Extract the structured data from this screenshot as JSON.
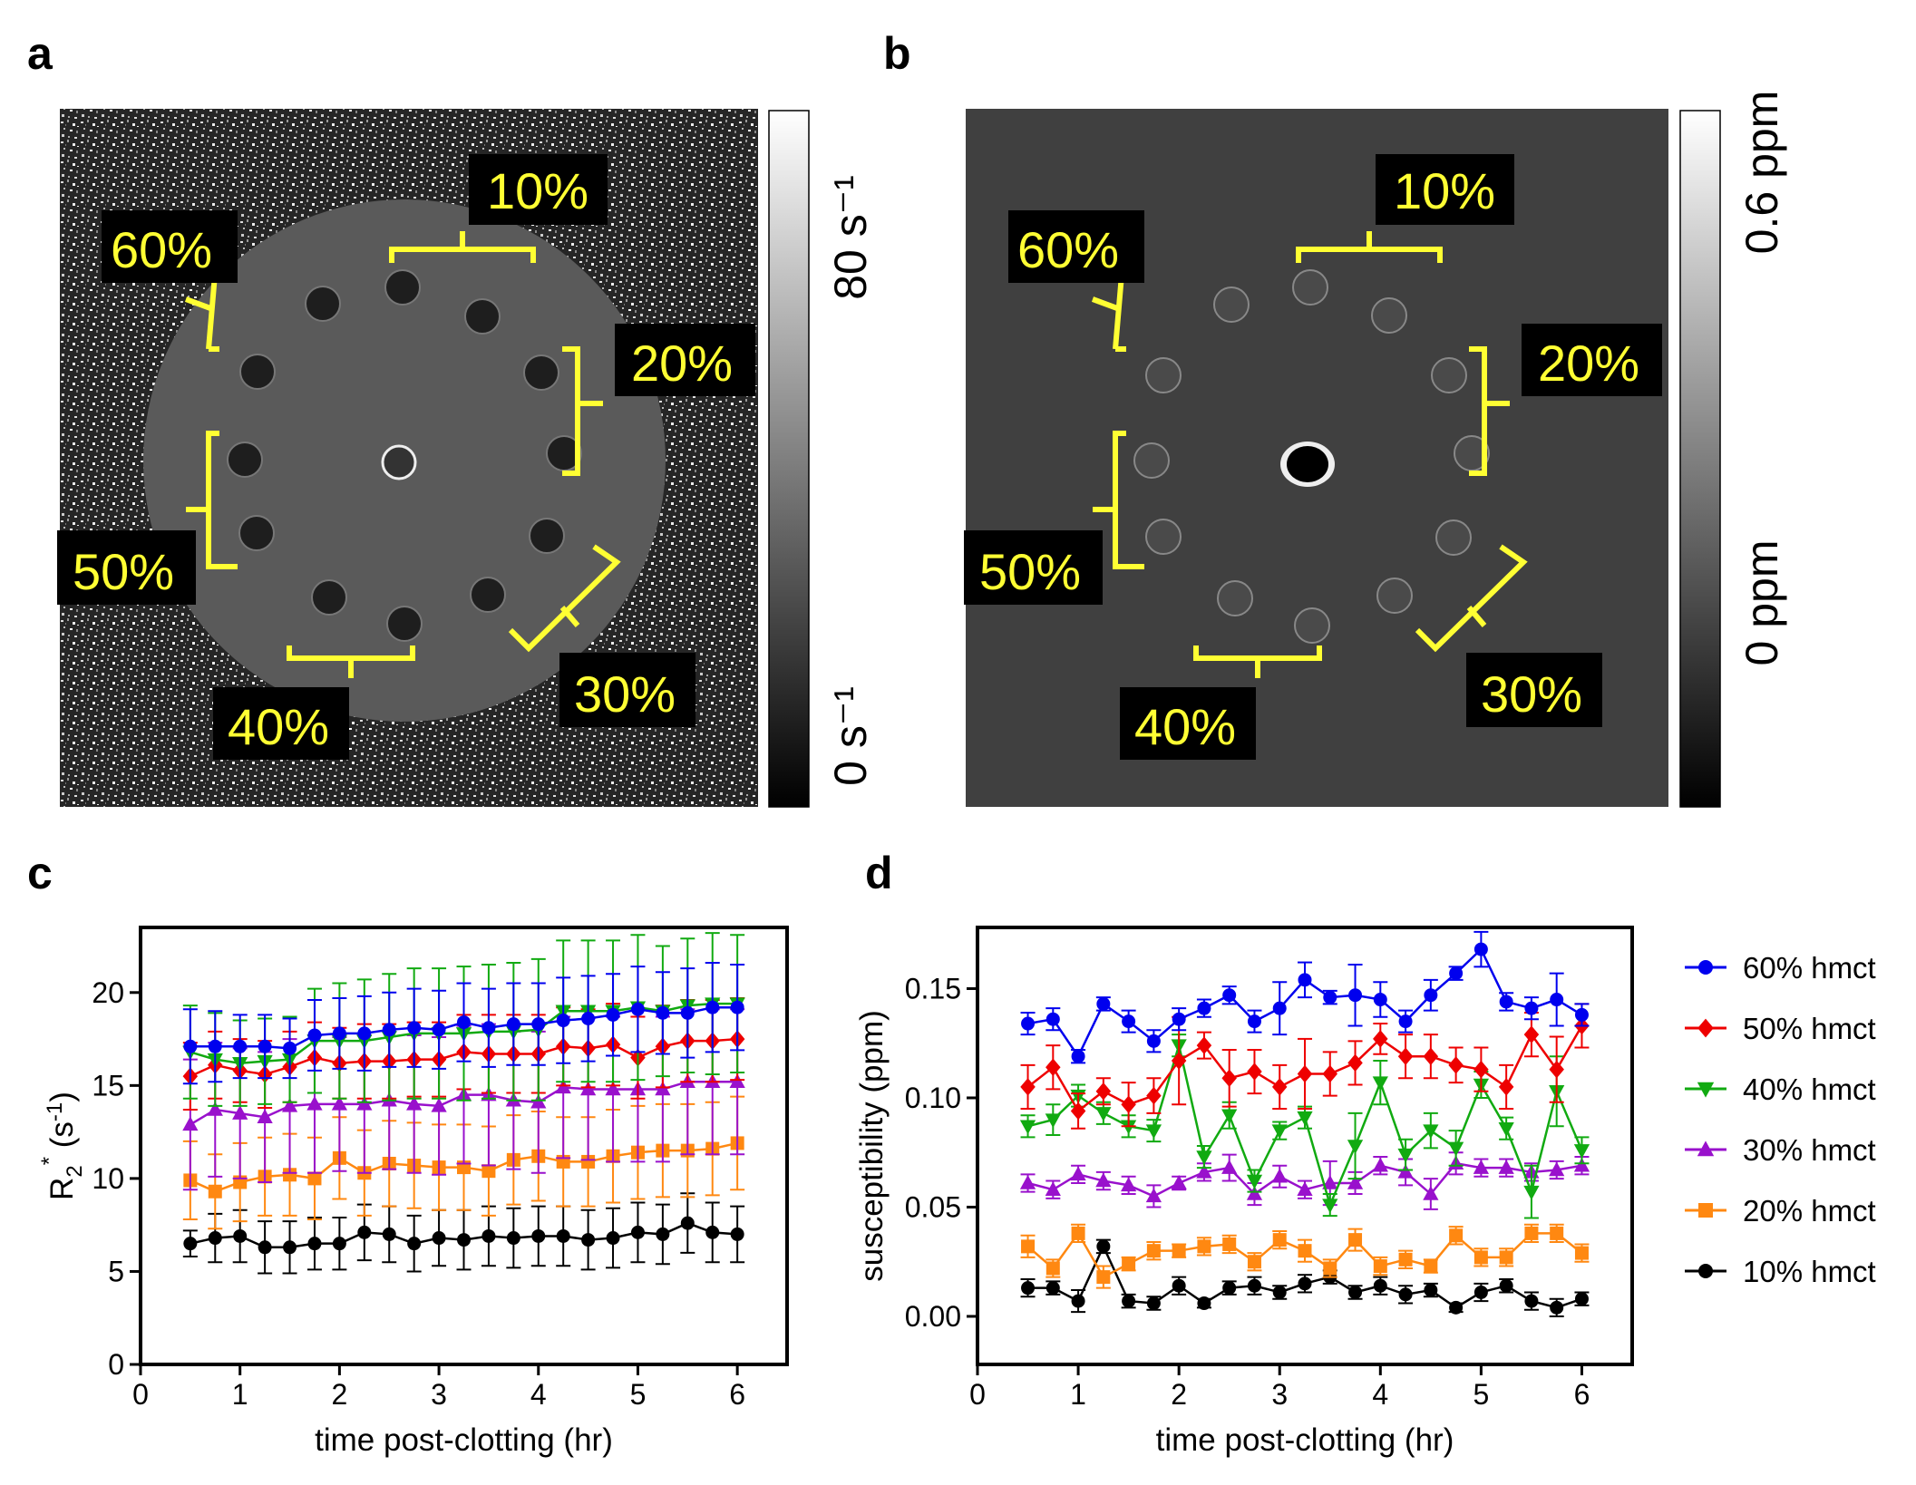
{
  "panels": {
    "a": {
      "label": "a",
      "colorbar": {
        "top_label": "80 s⁻¹",
        "bottom_label": "0 s⁻¹"
      },
      "hematocrit_labels": [
        "10%",
        "20%",
        "30%",
        "40%",
        "50%",
        "60%"
      ]
    },
    "b": {
      "label": "b",
      "colorbar": {
        "top_label": "0.6 ppm",
        "bottom_label": "0 ppm"
      },
      "hematocrit_labels": [
        "10%",
        "20%",
        "30%",
        "40%",
        "50%",
        "60%"
      ]
    },
    "c": {
      "label": "c"
    },
    "d": {
      "label": "d"
    }
  },
  "colors": {
    "60": "#0000ee",
    "50": "#ee0000",
    "40": "#11aa11",
    "30": "#9911cc",
    "20": "#ff8811",
    "10": "#000000",
    "label_yellow": "#ffff33"
  },
  "legend": [
    {
      "key": "60",
      "label": "60% hmct",
      "marker": "circle"
    },
    {
      "key": "50",
      "label": "50% hmct",
      "marker": "diamond"
    },
    {
      "key": "40",
      "label": "40% hmct",
      "marker": "triangle-down"
    },
    {
      "key": "30",
      "label": "30% hmct",
      "marker": "triangle-up"
    },
    {
      "key": "20",
      "label": "20% hmct",
      "marker": "square"
    },
    {
      "key": "10",
      "label": "10% hmct",
      "marker": "circle"
    }
  ],
  "chart_data": [
    {
      "panel": "c",
      "type": "line",
      "xlabel": "time post-clotting (hr)",
      "ylabel": "R2* (s-1)",
      "xlim": [
        0,
        6.5
      ],
      "ylim": [
        0,
        23.5
      ],
      "xticks": [
        0,
        1,
        2,
        3,
        4,
        5,
        6
      ],
      "yticks": [
        0,
        5,
        10,
        15,
        20
      ],
      "x": [
        0.5,
        0.75,
        1.0,
        1.25,
        1.5,
        1.75,
        2.0,
        2.25,
        2.5,
        2.75,
        3.0,
        3.25,
        3.5,
        3.75,
        4.0,
        4.25,
        4.5,
        4.75,
        5.0,
        5.25,
        5.5,
        5.75,
        6.0
      ],
      "series": [
        {
          "key": "60",
          "name": "60% hmct",
          "values": [
            17.1,
            17.1,
            17.1,
            17.1,
            17.0,
            17.7,
            17.8,
            17.8,
            18.0,
            18.1,
            18.0,
            18.4,
            18.1,
            18.3,
            18.3,
            18.5,
            18.6,
            18.8,
            19.1,
            18.9,
            18.9,
            19.2,
            19.2
          ],
          "err": [
            2.0,
            1.9,
            1.7,
            1.7,
            1.6,
            1.9,
            1.9,
            2.0,
            2.0,
            2.1,
            2.1,
            2.1,
            2.1,
            2.2,
            2.2,
            2.3,
            2.3,
            2.2,
            2.3,
            2.2,
            2.4,
            2.4,
            2.3
          ]
        },
        {
          "key": "40",
          "name": "40% hmct",
          "values": [
            16.8,
            16.4,
            16.2,
            16.3,
            16.4,
            17.4,
            17.4,
            17.4,
            17.6,
            17.8,
            17.8,
            17.8,
            17.9,
            17.9,
            18.0,
            19.0,
            19.0,
            19.0,
            19.2,
            19.0,
            19.3,
            19.4,
            19.4
          ],
          "err": [
            2.5,
            2.5,
            2.3,
            2.3,
            2.3,
            2.8,
            3.1,
            3.3,
            3.4,
            3.5,
            3.5,
            3.6,
            3.6,
            3.7,
            3.8,
            3.8,
            3.8,
            3.8,
            3.9,
            3.5,
            3.6,
            3.8,
            3.7
          ]
        },
        {
          "key": "50",
          "name": "50% hmct",
          "values": [
            15.5,
            16.1,
            15.8,
            15.6,
            16.0,
            16.5,
            16.2,
            16.3,
            16.3,
            16.4,
            16.4,
            16.8,
            16.7,
            16.7,
            16.7,
            17.1,
            17.0,
            17.2,
            16.5,
            17.1,
            17.4,
            17.4,
            17.5
          ],
          "err": [
            1.8,
            1.8,
            1.7,
            1.8,
            1.9,
            1.9,
            1.9,
            2.0,
            2.0,
            2.0,
            2.0,
            2.0,
            2.1,
            2.1,
            2.1,
            2.1,
            2.1,
            2.2,
            2.2,
            2.2,
            2.2,
            2.2,
            2.2
          ]
        },
        {
          "key": "30",
          "name": "30% hmct",
          "values": [
            12.9,
            13.7,
            13.5,
            13.3,
            13.9,
            14.0,
            14.0,
            14.0,
            14.2,
            14.0,
            13.9,
            14.5,
            14.5,
            14.2,
            14.1,
            14.9,
            14.8,
            14.8,
            14.8,
            14.8,
            15.2,
            15.2,
            15.2
          ],
          "err": [
            3.5,
            3.6,
            3.5,
            3.5,
            3.6,
            3.7,
            3.6,
            3.7,
            3.7,
            3.7,
            3.7,
            3.7,
            3.8,
            3.7,
            3.8,
            3.8,
            3.8,
            3.9,
            3.9,
            3.9,
            3.9,
            3.9,
            3.9
          ]
        },
        {
          "key": "20",
          "name": "20% hmct",
          "values": [
            9.9,
            9.3,
            9.8,
            10.1,
            10.2,
            10.0,
            11.1,
            10.3,
            10.8,
            10.7,
            10.6,
            10.6,
            10.4,
            11.0,
            11.2,
            10.9,
            10.9,
            11.2,
            11.4,
            11.5,
            11.5,
            11.6,
            11.9
          ],
          "err": [
            2.1,
            2.0,
            2.1,
            2.1,
            2.2,
            2.2,
            2.2,
            2.3,
            2.3,
            2.3,
            2.3,
            2.3,
            2.4,
            2.4,
            2.4,
            2.4,
            2.4,
            2.5,
            2.5,
            2.5,
            2.5,
            2.5,
            2.5
          ]
        },
        {
          "key": "10",
          "name": "10% hmct",
          "values": [
            6.5,
            6.8,
            6.9,
            6.3,
            6.3,
            6.5,
            6.5,
            7.1,
            7.0,
            6.5,
            6.8,
            6.7,
            6.9,
            6.8,
            6.9,
            6.9,
            6.7,
            6.8,
            7.1,
            7.0,
            7.6,
            7.1,
            7.0
          ],
          "err": [
            0.7,
            1.3,
            1.4,
            1.4,
            1.4,
            1.4,
            1.4,
            1.5,
            1.5,
            1.5,
            1.5,
            1.6,
            1.6,
            1.6,
            1.6,
            1.6,
            1.6,
            1.6,
            1.6,
            1.6,
            1.6,
            1.6,
            1.5
          ]
        }
      ]
    },
    {
      "panel": "d",
      "type": "line",
      "xlabel": "time post-clotting (hr)",
      "ylabel": "susceptibility (ppm)",
      "xlim": [
        0,
        6.5
      ],
      "ylim": [
        -0.022,
        0.178
      ],
      "xticks": [
        0,
        1,
        2,
        3,
        4,
        5,
        6
      ],
      "yticks": [
        0.0,
        0.05,
        0.1,
        0.15
      ],
      "ytick_labels": [
        "0.00",
        "0.05",
        "0.10",
        "0.15"
      ],
      "x": [
        0.5,
        0.75,
        1.0,
        1.25,
        1.5,
        1.75,
        2.0,
        2.25,
        2.5,
        2.75,
        3.0,
        3.25,
        3.5,
        3.75,
        4.0,
        4.25,
        4.5,
        4.75,
        5.0,
        5.25,
        5.5,
        5.75,
        6.0
      ],
      "series": [
        {
          "key": "60",
          "name": "60% hmct",
          "values": [
            0.134,
            0.136,
            0.119,
            0.143,
            0.135,
            0.126,
            0.136,
            0.141,
            0.147,
            0.135,
            0.141,
            0.154,
            0.146,
            0.147,
            0.145,
            0.135,
            0.147,
            0.157,
            0.168,
            0.144,
            0.141,
            0.145,
            0.138
          ],
          "err": [
            0.005,
            0.005,
            0.003,
            0.003,
            0.005,
            0.005,
            0.005,
            0.004,
            0.004,
            0.005,
            0.012,
            0.008,
            0.003,
            0.014,
            0.008,
            0.005,
            0.007,
            0.003,
            0.008,
            0.004,
            0.005,
            0.012,
            0.005
          ]
        },
        {
          "key": "50",
          "name": "50% hmct",
          "values": [
            0.105,
            0.114,
            0.094,
            0.103,
            0.097,
            0.101,
            0.117,
            0.124,
            0.109,
            0.112,
            0.105,
            0.111,
            0.111,
            0.116,
            0.127,
            0.119,
            0.119,
            0.115,
            0.113,
            0.105,
            0.129,
            0.113,
            0.133
          ],
          "err": [
            0.01,
            0.01,
            0.008,
            0.006,
            0.01,
            0.008,
            0.02,
            0.006,
            0.013,
            0.01,
            0.01,
            0.016,
            0.01,
            0.01,
            0.007,
            0.01,
            0.01,
            0.008,
            0.01,
            0.01,
            0.01,
            0.015,
            0.01
          ]
        },
        {
          "key": "40",
          "name": "40% hmct",
          "values": [
            0.087,
            0.09,
            0.101,
            0.093,
            0.087,
            0.085,
            0.124,
            0.073,
            0.092,
            0.062,
            0.085,
            0.091,
            0.051,
            0.078,
            0.107,
            0.074,
            0.085,
            0.077,
            0.106,
            0.086,
            0.057,
            0.103,
            0.076
          ],
          "err": [
            0.005,
            0.007,
            0.005,
            0.005,
            0.005,
            0.005,
            0.005,
            0.005,
            0.006,
            0.005,
            0.004,
            0.005,
            0.005,
            0.015,
            0.01,
            0.007,
            0.008,
            0.008,
            0.006,
            0.005,
            0.012,
            0.016,
            0.006
          ]
        },
        {
          "key": "30",
          "name": "30% hmct",
          "values": [
            0.061,
            0.058,
            0.065,
            0.062,
            0.06,
            0.055,
            0.061,
            0.066,
            0.068,
            0.056,
            0.064,
            0.058,
            0.061,
            0.061,
            0.069,
            0.066,
            0.056,
            0.07,
            0.068,
            0.068,
            0.066,
            0.067,
            0.069
          ],
          "err": [
            0.004,
            0.004,
            0.004,
            0.004,
            0.004,
            0.005,
            0.003,
            0.004,
            0.006,
            0.005,
            0.005,
            0.004,
            0.01,
            0.005,
            0.004,
            0.006,
            0.007,
            0.005,
            0.004,
            0.004,
            0.004,
            0.004,
            0.004
          ]
        },
        {
          "key": "20",
          "name": "20% hmct",
          "values": [
            0.032,
            0.022,
            0.038,
            0.018,
            0.024,
            0.03,
            0.03,
            0.032,
            0.033,
            0.025,
            0.035,
            0.03,
            0.022,
            0.035,
            0.023,
            0.026,
            0.023,
            0.037,
            0.027,
            0.027,
            0.038,
            0.038,
            0.029
          ],
          "err": [
            0.005,
            0.004,
            0.004,
            0.005,
            0.003,
            0.004,
            0.003,
            0.004,
            0.004,
            0.004,
            0.004,
            0.005,
            0.004,
            0.005,
            0.004,
            0.004,
            0.003,
            0.004,
            0.004,
            0.004,
            0.004,
            0.004,
            0.004
          ]
        },
        {
          "key": "10",
          "name": "10% hmct",
          "values": [
            0.013,
            0.013,
            0.007,
            0.032,
            0.007,
            0.006,
            0.014,
            0.006,
            0.013,
            0.014,
            0.011,
            0.015,
            0.018,
            0.011,
            0.014,
            0.01,
            0.012,
            0.004,
            0.011,
            0.014,
            0.007,
            0.004,
            0.008
          ],
          "err": [
            0.004,
            0.003,
            0.005,
            0.003,
            0.003,
            0.003,
            0.004,
            0.002,
            0.003,
            0.004,
            0.003,
            0.004,
            0.003,
            0.003,
            0.004,
            0.004,
            0.003,
            0.002,
            0.004,
            0.003,
            0.004,
            0.004,
            0.003
          ]
        }
      ]
    }
  ]
}
